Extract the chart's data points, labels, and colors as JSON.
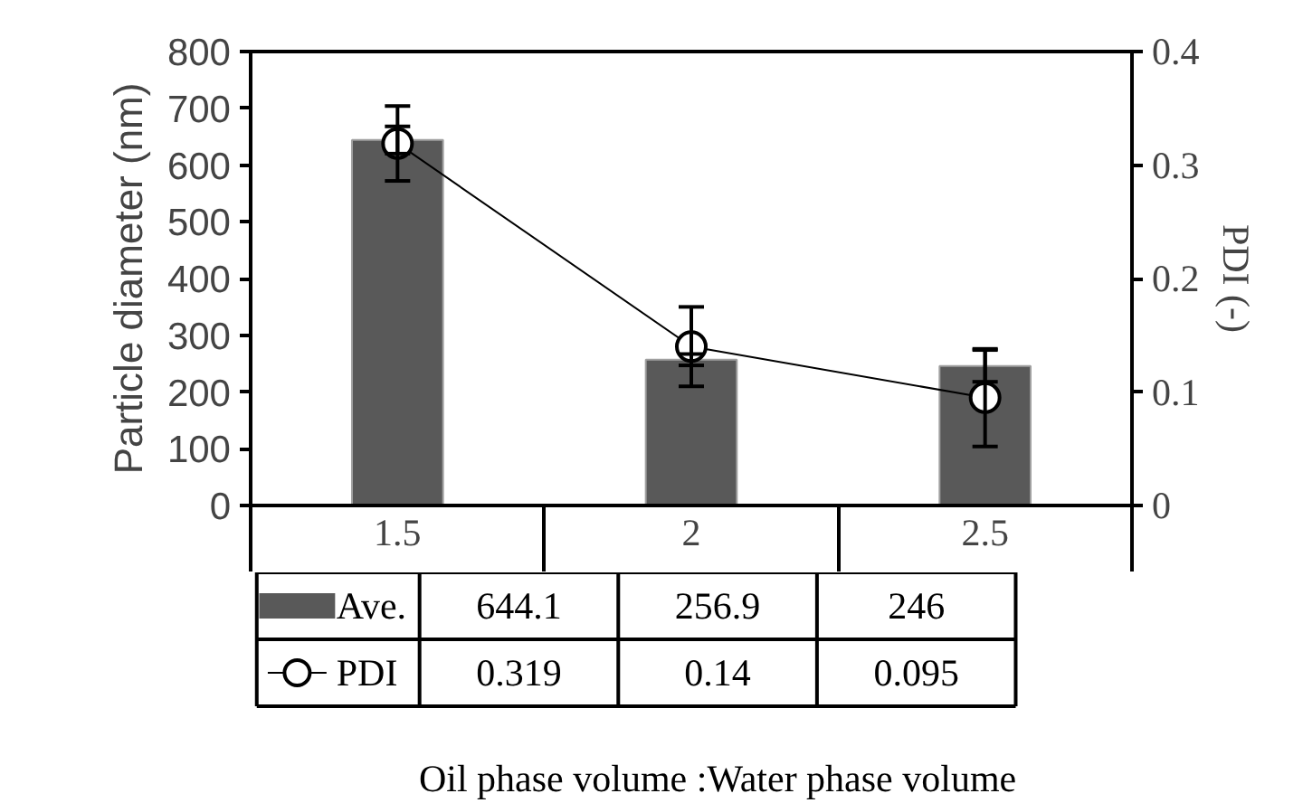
{
  "chart_data": {
    "type": "bar",
    "annotations": [
      "Oil phase volume :Water phase volume"
    ],
    "ylabel": "Particle diameter (nm)",
    "y2label": "PDI (-)",
    "categories": [
      "1.5",
      "2",
      "2.5"
    ],
    "series": [
      {
        "name": "Ave.",
        "color": "#595959",
        "values": [
          644.1,
          256.9,
          246
        ],
        "errors": [
          24,
          10,
          28
        ]
      },
      {
        "name": "PDI",
        "type": "line",
        "axis": "y2",
        "color": "#000000",
        "marker": "circle",
        "values": [
          0.319,
          0.14,
          0.095
        ],
        "errors": [
          0.033,
          0.035,
          0.043
        ]
      }
    ],
    "ylim": [
      0,
      800
    ],
    "yticks": [
      0,
      100,
      200,
      300,
      400,
      500,
      600,
      700,
      800
    ],
    "y2lim": [
      0,
      0.4
    ],
    "y2ticks": [
      0,
      0.1,
      0.2,
      0.3,
      0.4
    ],
    "data_labels": true,
    "legend": "bottom",
    "grid": false
  }
}
